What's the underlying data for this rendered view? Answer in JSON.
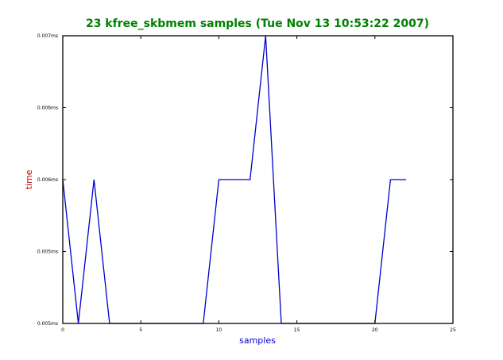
{
  "chart_data": {
    "type": "line",
    "title": "23 kfree_skbmem samples (Tue Nov 13 10:53:22 2007)",
    "xlabel": "samples",
    "ylabel": "time",
    "xlim": [
      0,
      25
    ],
    "ylim": [
      0,
      4
    ],
    "x_ticks": [
      0,
      5,
      10,
      15,
      20,
      25
    ],
    "y_ticks": [
      {
        "value": 0,
        "label": "0.005ms"
      },
      {
        "value": 1,
        "label": "0.005ms"
      },
      {
        "value": 2,
        "label": "0.006ms"
      },
      {
        "value": 3,
        "label": "0.006ms"
      },
      {
        "value": 4,
        "label": "0.007ms"
      }
    ],
    "series": [
      {
        "color": "#0000cc",
        "x": [
          0,
          1,
          2,
          3,
          4,
          5,
          6,
          7,
          8,
          9,
          10,
          11,
          12,
          13,
          14,
          15,
          16,
          17,
          18,
          19,
          20,
          21,
          22
        ],
        "y": [
          2,
          0,
          2,
          0,
          0,
          0,
          0,
          0,
          0,
          0,
          2,
          2,
          2,
          4,
          0,
          0,
          0,
          0,
          0,
          0,
          0,
          2,
          2
        ]
      }
    ],
    "grid": false,
    "colors": {
      "title": "#008000",
      "xlabel": "#0000cc",
      "ylabel": "#cc0000",
      "axes": "#000000",
      "line": "#0000cc"
    }
  }
}
